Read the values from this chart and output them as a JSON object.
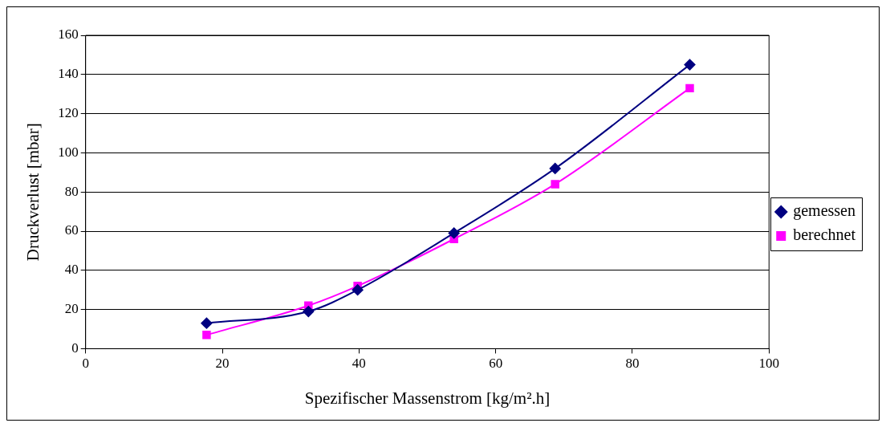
{
  "chart_data": {
    "type": "line",
    "xlabel": "Spezifischer Massenstrom [kg/m².h]",
    "ylabel": "Druckverlust [mbar]",
    "x": [
      17.7,
      32.6,
      39.8,
      53.9,
      68.7,
      88.4
    ],
    "series": [
      {
        "name": "gemessen",
        "color": "#000080",
        "marker": "diamond",
        "values": [
          13,
          19,
          30,
          59,
          92,
          145
        ]
      },
      {
        "name": "berechnet",
        "color": "#ff00ff",
        "marker": "square",
        "values": [
          7,
          22,
          32,
          56,
          84,
          133
        ]
      }
    ],
    "xlim": [
      0,
      100
    ],
    "xticks": [
      0,
      20,
      40,
      60,
      80,
      100
    ],
    "ylim": [
      0,
      160
    ],
    "yticks": [
      0,
      20,
      40,
      60,
      80,
      100,
      120,
      140,
      160
    ],
    "grid": "y",
    "legend": "right",
    "line_style": "solid"
  }
}
